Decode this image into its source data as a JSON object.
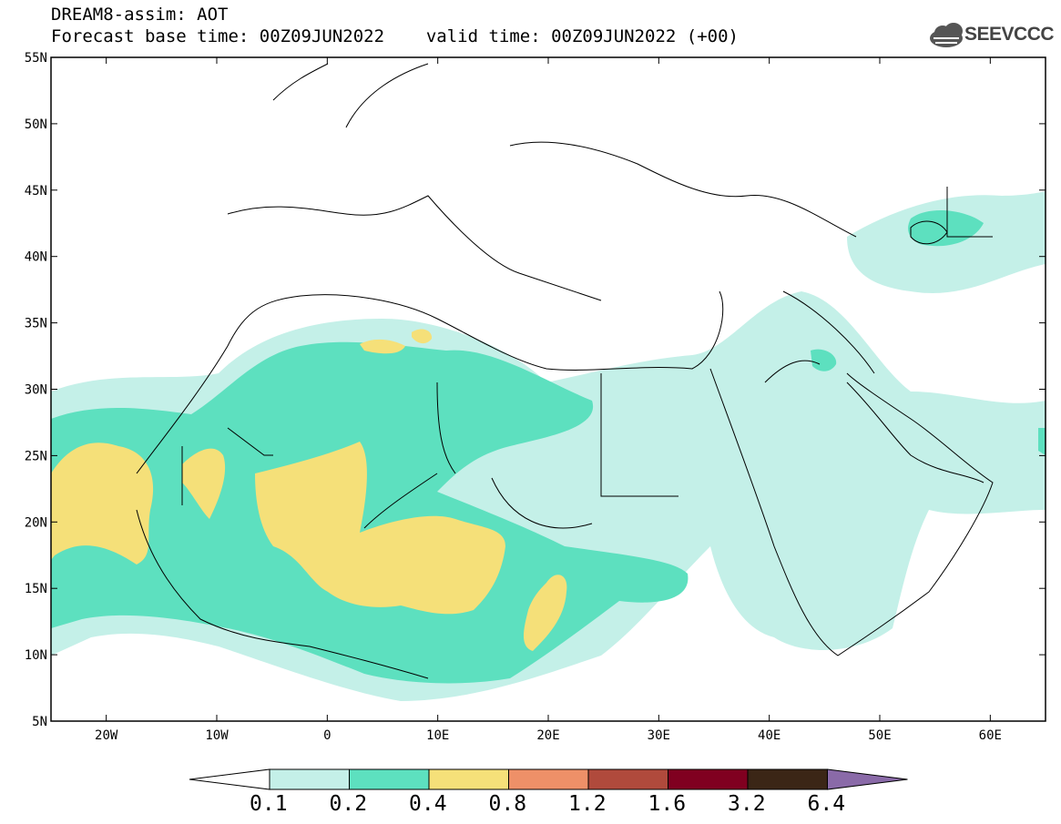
{
  "title": {
    "line1": "DREAM8-assim: AOT",
    "line2_base": "Forecast base time: 00Z09JUN2022",
    "line2_valid": "valid time: 00Z09JUN2022 (+00)"
  },
  "logo": {
    "text": "SEEVCCC",
    "icon": "cloud-icon"
  },
  "map": {
    "lon_range": [
      -25,
      65
    ],
    "lat_range": [
      5,
      55
    ],
    "lat_ticks": [
      "55N",
      "50N",
      "45N",
      "40N",
      "35N",
      "30N",
      "25N",
      "20N",
      "15N",
      "10N",
      "5N"
    ],
    "lon_ticks": [
      "20W",
      "10W",
      "0",
      "10E",
      "20E",
      "30E",
      "40E",
      "50E",
      "60E"
    ],
    "lat_values": [
      55,
      50,
      45,
      40,
      35,
      30,
      25,
      20,
      15,
      10,
      5
    ],
    "lon_values": [
      -20,
      -10,
      0,
      10,
      20,
      30,
      40,
      50,
      60
    ]
  },
  "colorbar": {
    "labels": [
      "0.1",
      "0.2",
      "0.4",
      "0.8",
      "1.2",
      "1.6",
      "3.2",
      "6.4"
    ],
    "colors": [
      "#c4f0e8",
      "#5de0bf",
      "#f5e079",
      "#ee9068",
      "#b04a3c",
      "#800020",
      "#3b2616",
      "#8a6aa8"
    ],
    "below_color": "#ffffff"
  }
}
